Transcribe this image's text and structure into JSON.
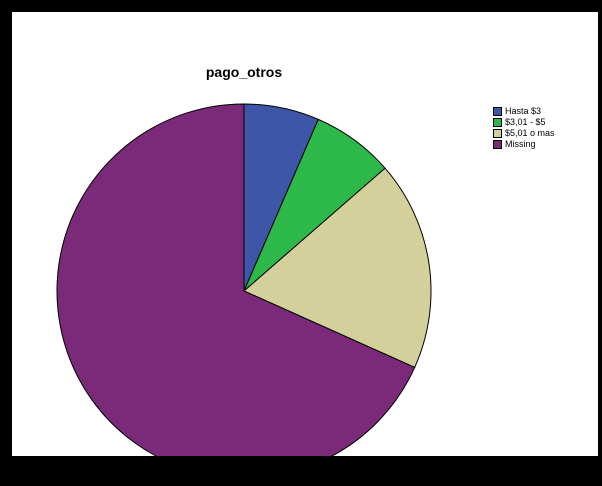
{
  "chart_data": {
    "type": "pie",
    "title": "pago_otros",
    "categories": [
      "Hasta $3",
      "$3,01 - $5",
      "$5,01 o mas",
      "Missing"
    ],
    "values": [
      6.5,
      7.1,
      18.1,
      68.3
    ],
    "colors": [
      "#3d56a8",
      "#2db84a",
      "#d4d09c",
      "#7b2a7a"
    ],
    "start_angle_deg": 0,
    "direction": "clockwise",
    "legend_position": "top-right"
  }
}
